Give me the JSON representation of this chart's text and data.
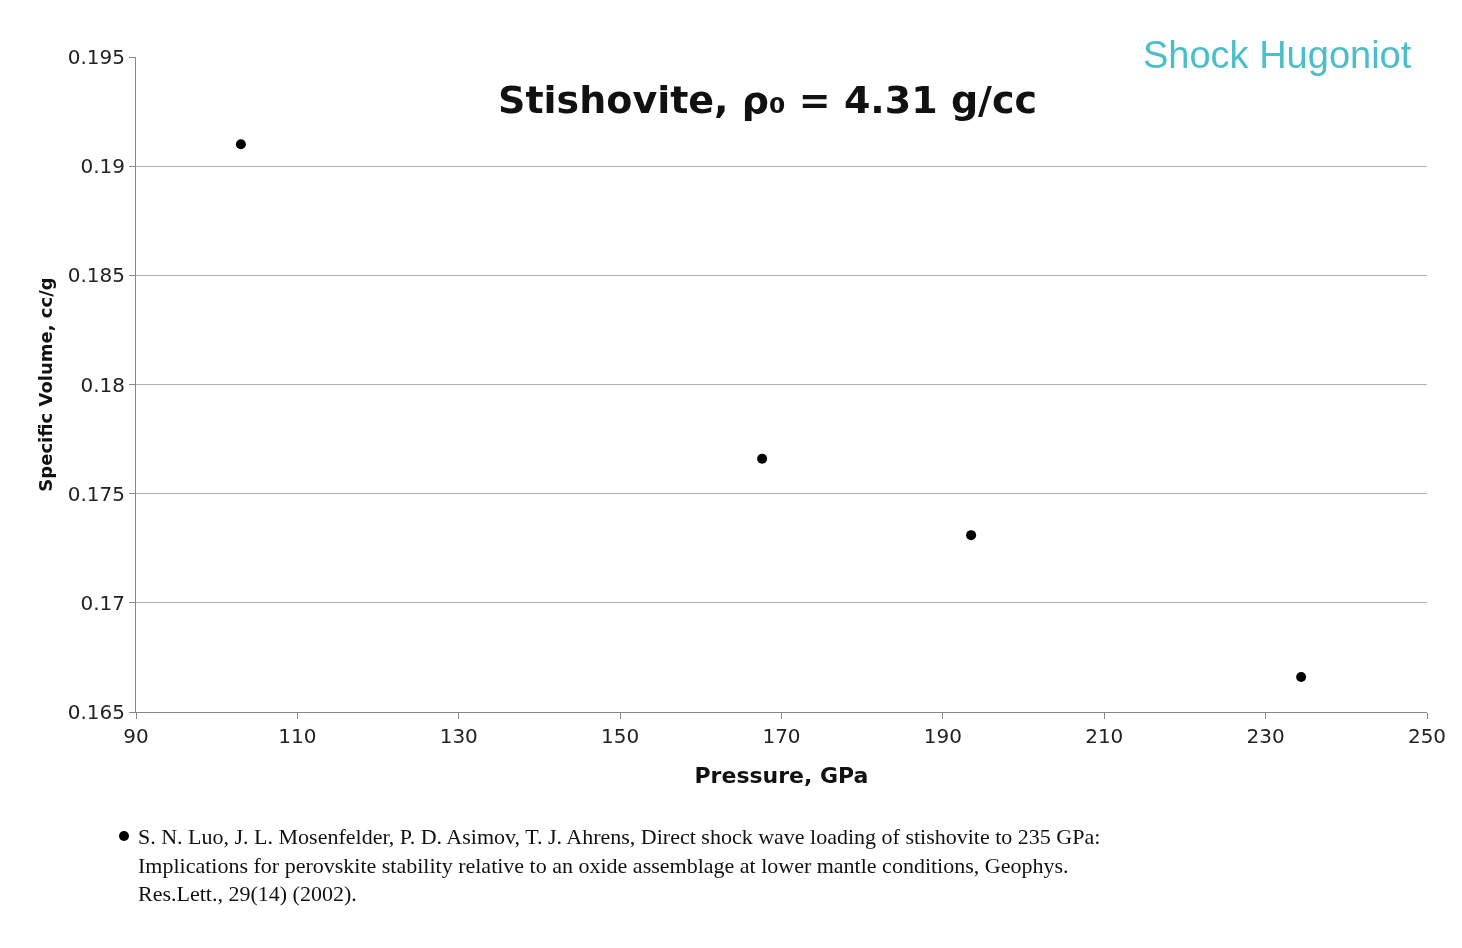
{
  "chart_data": {
    "type": "scatter",
    "title": "Stishovite, ρ₀ = 4.31 g/cc",
    "subtitle": "Shock Hugoniot",
    "xlabel": "Pressure, GPa",
    "ylabel": "Specific Volume, cc/g",
    "x": [
      103.0,
      167.6,
      193.5,
      234.4
    ],
    "series": [
      {
        "color": "#000000",
        "values": [
          0.191,
          0.1766,
          0.1731,
          0.1666
        ]
      }
    ],
    "annotations": [
      "S. N. Luo, J. L. Mosenfelder, P. D. Asimov, T. J. Ahrens, Direct shock wave loading of stishovite to 235 GPa: Implications for perovskite stability relative to an oxide assemblage at lower mantle conditions, Geophys. Res.Lett., 29(14) (2002)."
    ],
    "xlim": [
      90,
      250
    ],
    "xticks": [
      90,
      110,
      130,
      150,
      170,
      190,
      210,
      230,
      250
    ],
    "ylim": [
      0.165,
      0.195
    ],
    "yticks": [
      0.165,
      0.17,
      0.175,
      0.18,
      0.185,
      0.19,
      0.195
    ],
    "grid": "y",
    "marker": "circle"
  }
}
